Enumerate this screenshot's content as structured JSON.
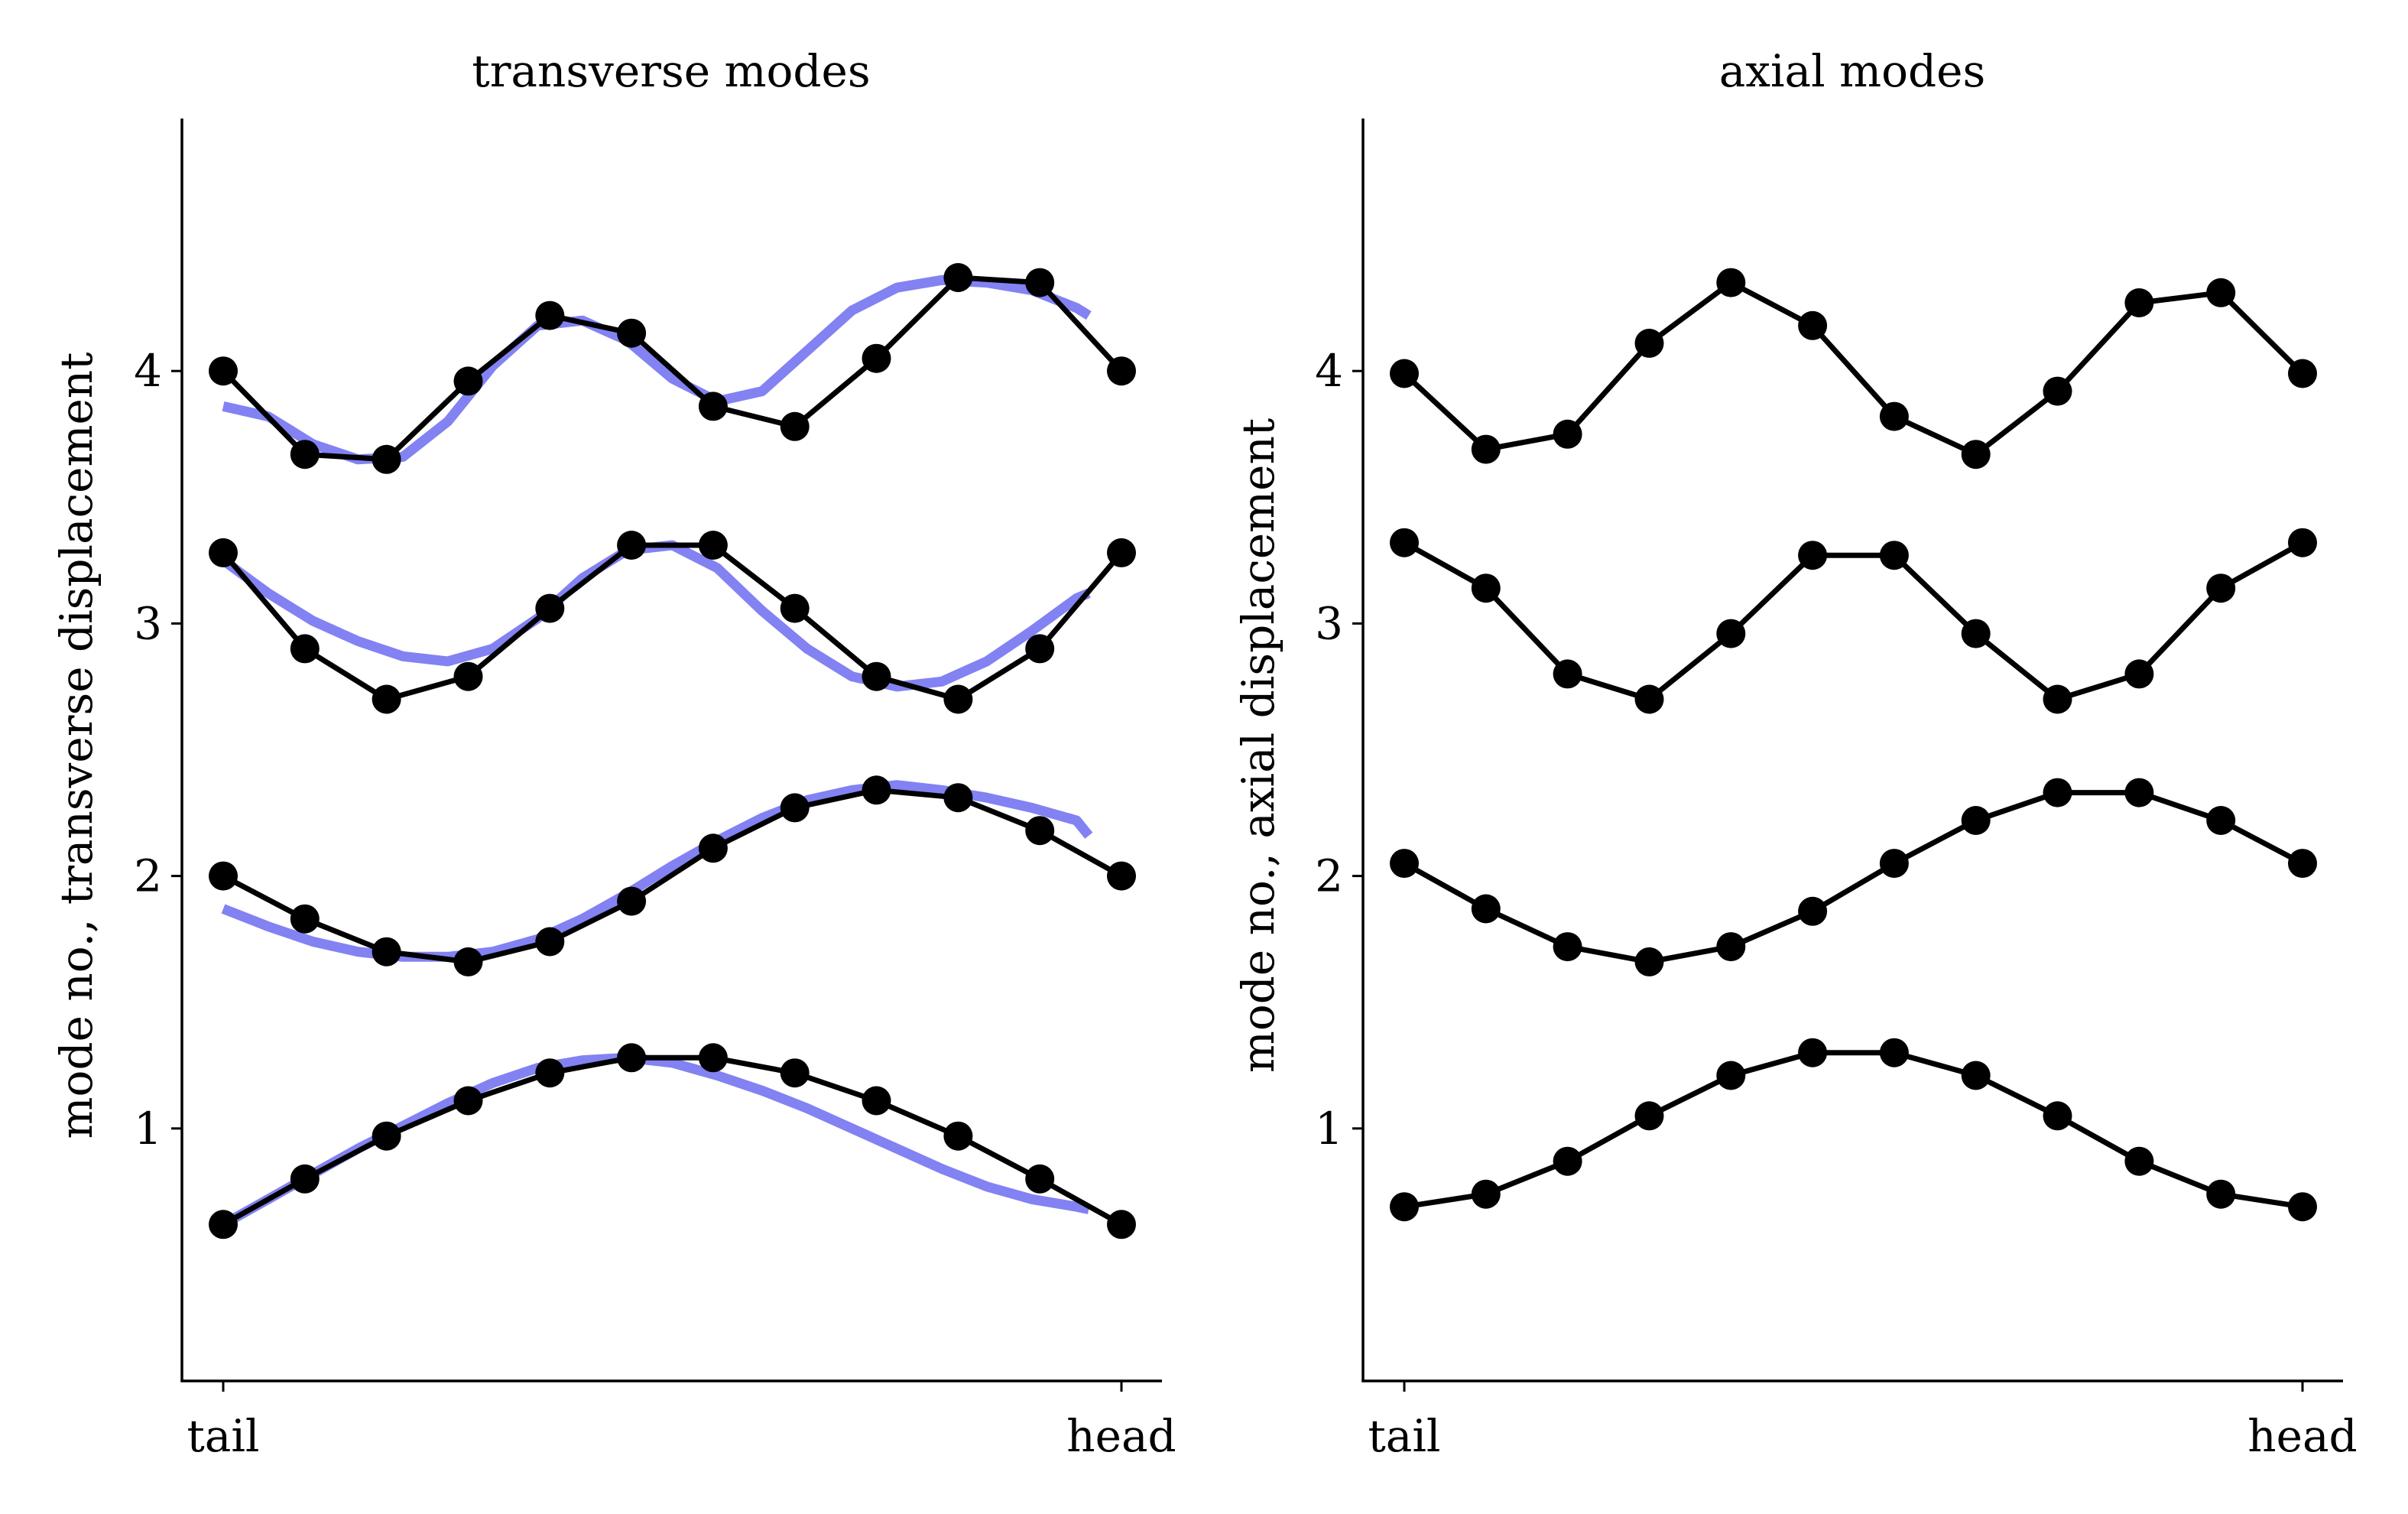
{
  "chart_data": [
    {
      "type": "line",
      "title": "transverse modes",
      "xlabel": "",
      "ylabel": "mode no., transverse displacement",
      "x_tick_labels": [
        "tail",
        "head"
      ],
      "y_tick_labels": [
        "1",
        "2",
        "3",
        "4"
      ],
      "ylim": [
        0.0,
        5.0
      ],
      "grid": false,
      "legend": "none",
      "colors": {
        "points": "#000000",
        "fit": "#7b7bf2"
      },
      "x": [
        0,
        1,
        2,
        3,
        4,
        5,
        6,
        7,
        8,
        9,
        10,
        11
      ],
      "series": [
        {
          "values": [
            0.62,
            0.8,
            0.97,
            1.11,
            1.22,
            1.28,
            1.28,
            1.22,
            1.11,
            0.97,
            0.8,
            0.62
          ]
        },
        {
          "values": [
            2.0,
            1.83,
            1.7,
            1.66,
            1.74,
            1.9,
            2.11,
            2.27,
            2.34,
            2.31,
            2.18,
            2.0
          ]
        },
        {
          "values": [
            3.28,
            2.9,
            2.7,
            2.79,
            3.06,
            3.31,
            3.31,
            3.06,
            2.79,
            2.7,
            2.9,
            3.28
          ]
        },
        {
          "values": [
            4.0,
            3.67,
            3.65,
            3.96,
            4.22,
            4.15,
            3.86,
            3.78,
            4.05,
            4.37,
            4.35,
            4.0
          ]
        }
      ],
      "fits": [
        {
          "x": [
            0,
            0.55,
            1.1,
            1.65,
            2.2,
            2.75,
            3.3,
            3.85,
            4.4,
            4.95,
            5.5,
            6.05,
            6.6,
            7.15,
            7.7,
            8.25,
            8.8,
            9.35,
            9.9,
            10.45,
            10.6
          ],
          "values": [
            0.62,
            0.72,
            0.82,
            0.92,
            1.01,
            1.1,
            1.18,
            1.24,
            1.27,
            1.28,
            1.26,
            1.21,
            1.15,
            1.08,
            1.0,
            0.92,
            0.84,
            0.77,
            0.72,
            0.69,
            0.68
          ]
        },
        {
          "x": [
            0,
            0.55,
            1.1,
            1.65,
            2.2,
            2.75,
            3.3,
            3.85,
            4.4,
            4.95,
            5.5,
            6.05,
            6.6,
            7.15,
            7.7,
            8.25,
            8.8,
            9.35,
            9.9,
            10.45,
            10.6
          ],
          "values": [
            1.87,
            1.8,
            1.74,
            1.7,
            1.68,
            1.68,
            1.7,
            1.75,
            1.83,
            1.93,
            2.04,
            2.14,
            2.23,
            2.3,
            2.34,
            2.36,
            2.34,
            2.31,
            2.27,
            2.22,
            2.16
          ]
        },
        {
          "x": [
            0,
            0.55,
            1.1,
            1.65,
            2.2,
            2.75,
            3.3,
            3.85,
            4.4,
            4.95,
            5.5,
            6.05,
            6.6,
            7.15,
            7.7,
            8.25,
            8.8,
            9.35,
            9.9,
            10.45,
            10.6
          ],
          "values": [
            3.25,
            3.12,
            3.01,
            2.93,
            2.87,
            2.85,
            2.9,
            3.02,
            3.18,
            3.29,
            3.31,
            3.22,
            3.05,
            2.9,
            2.79,
            2.75,
            2.77,
            2.85,
            2.97,
            3.1,
            3.12
          ]
        },
        {
          "x": [
            0,
            0.55,
            1.1,
            1.65,
            2.2,
            2.75,
            3.3,
            3.85,
            4.4,
            4.95,
            5.5,
            6.05,
            6.6,
            7.15,
            7.7,
            8.25,
            8.8,
            9.35,
            9.9,
            10.45,
            10.6
          ],
          "values": [
            3.86,
            3.82,
            3.71,
            3.65,
            3.66,
            3.8,
            4.02,
            4.18,
            4.2,
            4.12,
            3.97,
            3.88,
            3.92,
            4.08,
            4.24,
            4.33,
            4.36,
            4.35,
            4.32,
            4.25,
            4.22
          ]
        }
      ]
    },
    {
      "type": "line",
      "title": "axial modes",
      "xlabel": "",
      "ylabel": "mode no., axial displacement",
      "x_tick_labels": [
        "tail",
        "head"
      ],
      "y_tick_labels": [
        "1",
        "2",
        "3",
        "4"
      ],
      "ylim": [
        0.0,
        5.0
      ],
      "grid": false,
      "legend": "none",
      "colors": {
        "points": "#000000"
      },
      "x": [
        0,
        1,
        2,
        3,
        4,
        5,
        6,
        7,
        8,
        9,
        10,
        11
      ],
      "series": [
        {
          "values": [
            0.69,
            0.74,
            0.87,
            1.05,
            1.21,
            1.3,
            1.3,
            1.21,
            1.05,
            0.87,
            0.74,
            0.69
          ]
        },
        {
          "values": [
            2.05,
            1.87,
            1.72,
            1.66,
            1.72,
            1.86,
            2.05,
            2.22,
            2.33,
            2.33,
            2.22,
            2.05
          ]
        },
        {
          "values": [
            3.32,
            3.14,
            2.8,
            2.7,
            2.96,
            3.27,
            3.27,
            2.96,
            2.7,
            2.8,
            3.14,
            3.32
          ]
        },
        {
          "values": [
            3.99,
            3.69,
            3.75,
            4.11,
            4.35,
            4.18,
            3.82,
            3.67,
            3.92,
            4.27,
            4.31,
            3.99
          ]
        }
      ]
    }
  ]
}
